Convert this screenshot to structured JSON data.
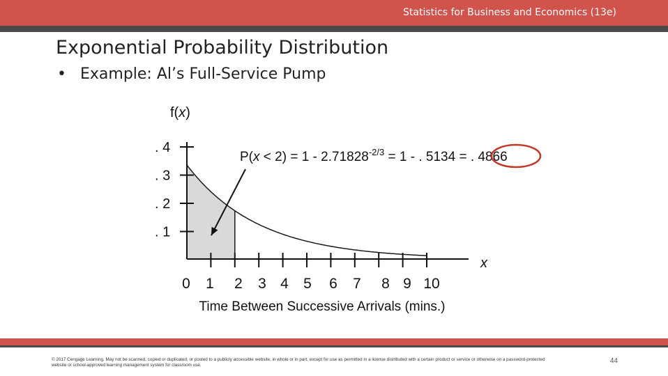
{
  "header": {
    "book_title": "Statistics for Business and Economics (13e)"
  },
  "slide": {
    "title": "Exponential Probability Distribution",
    "bullet_marker": "•",
    "bullet": "Example:  Al’s Full-Service Pump"
  },
  "chart_data": {
    "type": "area",
    "ylabel_f": "f(",
    "ylabel_var": "x",
    "ylabel_close": ")",
    "xlabel": "x",
    "x_axis_title": "Time Between Successive Arrivals (mins.)",
    "y_ticks": [
      ". 4",
      ". 3",
      ". 2",
      ". 1"
    ],
    "y_tick_values": [
      0.4,
      0.3,
      0.2,
      0.1
    ],
    "x_ticks": [
      "0",
      "1",
      "2",
      "3",
      "4",
      "5",
      "6",
      "7",
      "8",
      "9",
      "10"
    ],
    "x_tick_values": [
      0,
      1,
      2,
      3,
      4,
      5,
      6,
      7,
      8,
      9,
      10
    ],
    "ylim": [
      0,
      0.4
    ],
    "xlim": [
      0,
      10
    ],
    "curve": {
      "mean": 3,
      "x": [
        0,
        0.5,
        1,
        1.5,
        2,
        3,
        4,
        5,
        6,
        7,
        8,
        9,
        10
      ],
      "y": [
        0.333,
        0.282,
        0.239,
        0.202,
        0.171,
        0.123,
        0.088,
        0.063,
        0.045,
        0.032,
        0.023,
        0.017,
        0.012
      ]
    },
    "shaded_range": [
      0,
      2
    ],
    "annotation": {
      "prefix": "P(",
      "var": "x",
      "relation": " < 2) = 1 - 2.71828",
      "exponent": "-2/3",
      "rest": " = 1 - . 5134 = ",
      "result": ". 4866"
    },
    "colors": {
      "shade": "#d9d9d9",
      "line": "#1a1a1a",
      "highlight_circle": "#c0392b"
    },
    "grid": false
  },
  "footer": {
    "copyright": "© 2017 Cengage Learning. May not be scanned, copied or duplicated, or posted to a publicly accessible website, in whole or in part, except for use as permitted in a license distributed with a certain product or service or otherwise on a password-protected website or school-approved learning management system for classroom use.",
    "page_number": "44"
  }
}
